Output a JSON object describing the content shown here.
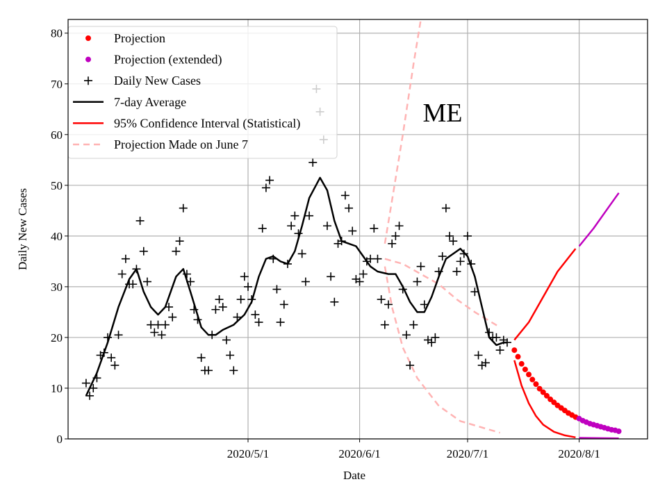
{
  "chart_data": {
    "type": "line",
    "annotation": "ME",
    "xlabel": "Date",
    "ylabel": "Daily New Cases",
    "xlim": [
      "2020-03-12",
      "2020-08-20"
    ],
    "ylim": [
      0,
      82.7
    ],
    "grid": true,
    "legend_placement": "top-left",
    "x_ticks": [
      {
        "date": "2020-05-01",
        "label": "2020/5/1"
      },
      {
        "date": "2020-06-01",
        "label": "2020/6/1"
      },
      {
        "date": "2020-07-01",
        "label": "2020/7/1"
      },
      {
        "date": "2020-08-01",
        "label": "2020/8/1"
      }
    ],
    "y_ticks": [
      0,
      10,
      20,
      30,
      40,
      50,
      60,
      70,
      80
    ],
    "colors": {
      "projection": "#ff0000",
      "projection_extended": "#bf00bf",
      "daily": "#000000",
      "average": "#000000",
      "ci": "#ff0000",
      "ci_extended": "#bf00bf",
      "june7": "#ffb3b3",
      "grid": "#b0b0b0"
    },
    "legend": [
      {
        "label": "Projection",
        "marker": "dot",
        "color": "#ff0000"
      },
      {
        "label": "Projection (extended)",
        "marker": "dot",
        "color": "#bf00bf"
      },
      {
        "label": "Daily New Cases",
        "marker": "plus",
        "color": "#000000"
      },
      {
        "label": "7-day Average",
        "marker": "line",
        "color": "#000000"
      },
      {
        "label": "95% Confidence Interval (Statistical)",
        "marker": "line",
        "color": "#ff0000"
      },
      {
        "label": "Projection Made on June 7",
        "marker": "dashed",
        "color": "#ffb3b3"
      }
    ],
    "series": {
      "daily_new_cases": [
        [
          "2020-03-17",
          11
        ],
        [
          "2020-03-18",
          8.5
        ],
        [
          "2020-03-19",
          10
        ],
        [
          "2020-03-20",
          12
        ],
        [
          "2020-03-21",
          16.5
        ],
        [
          "2020-03-22",
          17
        ],
        [
          "2020-03-23",
          20
        ],
        [
          "2020-03-24",
          16
        ],
        [
          "2020-03-25",
          14.5
        ],
        [
          "2020-03-26",
          20.5
        ],
        [
          "2020-03-27",
          32.5
        ],
        [
          "2020-03-28",
          35.5
        ],
        [
          "2020-03-29",
          30.5
        ],
        [
          "2020-03-30",
          30.5
        ],
        [
          "2020-03-31",
          33.5
        ],
        [
          "2020-04-01",
          43
        ],
        [
          "2020-04-02",
          37
        ],
        [
          "2020-04-03",
          31
        ],
        [
          "2020-04-04",
          22.5
        ],
        [
          "2020-04-05",
          21
        ],
        [
          "2020-04-06",
          22.5
        ],
        [
          "2020-04-07",
          20.5
        ],
        [
          "2020-04-08",
          22.5
        ],
        [
          "2020-04-09",
          26
        ],
        [
          "2020-04-10",
          24
        ],
        [
          "2020-04-11",
          37
        ],
        [
          "2020-04-12",
          39
        ],
        [
          "2020-04-13",
          45.5
        ],
        [
          "2020-04-14",
          32.5
        ],
        [
          "2020-04-15",
          31
        ],
        [
          "2020-04-16",
          25.5
        ],
        [
          "2020-04-17",
          23.5
        ],
        [
          "2020-04-18",
          16
        ],
        [
          "2020-04-19",
          13.5
        ],
        [
          "2020-04-20",
          13.5
        ],
        [
          "2020-04-21",
          20.5
        ],
        [
          "2020-04-22",
          25.5
        ],
        [
          "2020-04-23",
          27.5
        ],
        [
          "2020-04-24",
          26
        ],
        [
          "2020-04-25",
          19.5
        ],
        [
          "2020-04-26",
          16.5
        ],
        [
          "2020-04-27",
          13.5
        ],
        [
          "2020-04-28",
          24
        ],
        [
          "2020-04-29",
          27.5
        ],
        [
          "2020-04-30",
          32
        ],
        [
          "2020-05-01",
          30
        ],
        [
          "2020-05-02",
          27.5
        ],
        [
          "2020-05-03",
          24.5
        ],
        [
          "2020-05-04",
          23
        ],
        [
          "2020-05-05",
          41.5
        ],
        [
          "2020-05-06",
          49.5
        ],
        [
          "2020-05-07",
          51
        ],
        [
          "2020-05-08",
          35.5
        ],
        [
          "2020-05-09",
          29.5
        ],
        [
          "2020-05-10",
          23
        ],
        [
          "2020-05-11",
          26.5
        ],
        [
          "2020-05-12",
          34.5
        ],
        [
          "2020-05-13",
          42
        ],
        [
          "2020-05-14",
          44
        ],
        [
          "2020-05-15",
          40.5
        ],
        [
          "2020-05-16",
          36.5
        ],
        [
          "2020-05-17",
          31
        ],
        [
          "2020-05-18",
          44
        ],
        [
          "2020-05-19",
          54.5
        ],
        [
          "2020-05-20",
          69
        ],
        [
          "2020-05-21",
          64.5
        ],
        [
          "2020-05-22",
          59
        ],
        [
          "2020-05-23",
          42
        ],
        [
          "2020-05-24",
          32
        ],
        [
          "2020-05-25",
          27
        ],
        [
          "2020-05-26",
          38.5
        ],
        [
          "2020-05-27",
          39
        ],
        [
          "2020-05-28",
          48
        ],
        [
          "2020-05-29",
          45.5
        ],
        [
          "2020-05-30",
          41
        ],
        [
          "2020-05-31",
          31.5
        ],
        [
          "2020-06-01",
          31
        ],
        [
          "2020-06-02",
          32.5
        ],
        [
          "2020-06-03",
          35
        ],
        [
          "2020-06-04",
          35.5
        ],
        [
          "2020-06-05",
          41.5
        ],
        [
          "2020-06-06",
          35.5
        ],
        [
          "2020-06-07",
          27.5
        ],
        [
          "2020-06-08",
          22.5
        ],
        [
          "2020-06-09",
          26.5
        ],
        [
          "2020-06-10",
          38.5
        ],
        [
          "2020-06-11",
          40
        ],
        [
          "2020-06-12",
          42
        ],
        [
          "2020-06-13",
          29.5
        ],
        [
          "2020-06-14",
          20.5
        ],
        [
          "2020-06-15",
          14.5
        ],
        [
          "2020-06-16",
          22.5
        ],
        [
          "2020-06-17",
          31
        ],
        [
          "2020-06-18",
          34
        ],
        [
          "2020-06-19",
          26.5
        ],
        [
          "2020-06-20",
          19.5
        ],
        [
          "2020-06-21",
          19
        ],
        [
          "2020-06-22",
          20
        ],
        [
          "2020-06-23",
          33
        ],
        [
          "2020-06-24",
          36
        ],
        [
          "2020-06-25",
          45.5
        ],
        [
          "2020-06-26",
          40
        ],
        [
          "2020-06-27",
          39
        ],
        [
          "2020-06-28",
          33
        ],
        [
          "2020-06-29",
          35
        ],
        [
          "2020-06-30",
          36.5
        ],
        [
          "2020-07-01",
          40
        ],
        [
          "2020-07-02",
          34.5
        ],
        [
          "2020-07-03",
          29
        ],
        [
          "2020-07-04",
          16.5
        ],
        [
          "2020-07-05",
          14.5
        ],
        [
          "2020-07-06",
          15
        ],
        [
          "2020-07-07",
          21
        ],
        [
          "2020-07-08",
          20
        ],
        [
          "2020-07-09",
          20
        ],
        [
          "2020-07-10",
          17.5
        ],
        [
          "2020-07-11",
          19.5
        ],
        [
          "2020-07-12",
          19
        ]
      ],
      "seven_day_average": [
        [
          "2020-03-17",
          8.5
        ],
        [
          "2020-03-20",
          13
        ],
        [
          "2020-03-23",
          19
        ],
        [
          "2020-03-26",
          26
        ],
        [
          "2020-03-29",
          31.5
        ],
        [
          "2020-03-31",
          33.5
        ],
        [
          "2020-04-02",
          29
        ],
        [
          "2020-04-04",
          26
        ],
        [
          "2020-04-06",
          24.5
        ],
        [
          "2020-04-08",
          26
        ],
        [
          "2020-04-11",
          32
        ],
        [
          "2020-04-13",
          33.5
        ],
        [
          "2020-04-15",
          29
        ],
        [
          "2020-04-18",
          22
        ],
        [
          "2020-04-20",
          20.5
        ],
        [
          "2020-04-22",
          20.5
        ],
        [
          "2020-04-24",
          21.5
        ],
        [
          "2020-04-27",
          22.5
        ],
        [
          "2020-04-30",
          24.5
        ],
        [
          "2020-05-02",
          27
        ],
        [
          "2020-05-04",
          32
        ],
        [
          "2020-05-06",
          35.5
        ],
        [
          "2020-05-08",
          36
        ],
        [
          "2020-05-10",
          35
        ],
        [
          "2020-05-12",
          34.5
        ],
        [
          "2020-05-14",
          37
        ],
        [
          "2020-05-16",
          42
        ],
        [
          "2020-05-18",
          47.5
        ],
        [
          "2020-05-21",
          51.5
        ],
        [
          "2020-05-23",
          49
        ],
        [
          "2020-05-25",
          43
        ],
        [
          "2020-05-27",
          39
        ],
        [
          "2020-05-29",
          38.5
        ],
        [
          "2020-05-31",
          38
        ],
        [
          "2020-06-02",
          36
        ],
        [
          "2020-06-04",
          34
        ],
        [
          "2020-06-06",
          33
        ],
        [
          "2020-06-09",
          32.5
        ],
        [
          "2020-06-11",
          32.5
        ],
        [
          "2020-06-13",
          30
        ],
        [
          "2020-06-15",
          27
        ],
        [
          "2020-06-17",
          25
        ],
        [
          "2020-06-19",
          25
        ],
        [
          "2020-06-21",
          28
        ],
        [
          "2020-06-23",
          32
        ],
        [
          "2020-06-25",
          35.5
        ],
        [
          "2020-06-29",
          37.5
        ],
        [
          "2020-07-01",
          36
        ],
        [
          "2020-07-03",
          32
        ],
        [
          "2020-07-05",
          26
        ],
        [
          "2020-07-07",
          20
        ],
        [
          "2020-07-09",
          18.5
        ],
        [
          "2020-07-11",
          19
        ],
        [
          "2020-07-12",
          19
        ]
      ],
      "projection": [
        [
          "2020-07-14",
          17.5
        ],
        [
          "2020-07-15",
          16.2
        ],
        [
          "2020-07-16",
          14.8
        ],
        [
          "2020-07-17",
          13.7
        ],
        [
          "2020-07-18",
          12.7
        ],
        [
          "2020-07-19",
          11.7
        ],
        [
          "2020-07-20",
          10.8
        ],
        [
          "2020-07-21",
          9.9
        ],
        [
          "2020-07-22",
          9.2
        ],
        [
          "2020-07-23",
          8.5
        ],
        [
          "2020-07-24",
          7.8
        ],
        [
          "2020-07-25",
          7.2
        ],
        [
          "2020-07-26",
          6.6
        ],
        [
          "2020-07-27",
          6.1
        ],
        [
          "2020-07-28",
          5.6
        ],
        [
          "2020-07-29",
          5.1
        ],
        [
          "2020-07-30",
          4.7
        ],
        [
          "2020-07-31",
          4.3
        ]
      ],
      "projection_extended": [
        [
          "2020-08-01",
          4.0
        ],
        [
          "2020-08-02",
          3.6
        ],
        [
          "2020-08-03",
          3.3
        ],
        [
          "2020-08-04",
          3.0
        ],
        [
          "2020-08-05",
          2.8
        ],
        [
          "2020-08-06",
          2.6
        ],
        [
          "2020-08-07",
          2.4
        ],
        [
          "2020-08-08",
          2.2
        ],
        [
          "2020-08-09",
          2.0
        ],
        [
          "2020-08-10",
          1.8
        ],
        [
          "2020-08-11",
          1.7
        ],
        [
          "2020-08-12",
          1.5
        ]
      ],
      "ci_upper": [
        [
          "2020-07-14",
          19.5
        ],
        [
          "2020-07-18",
          23
        ],
        [
          "2020-07-22",
          28
        ],
        [
          "2020-07-26",
          33
        ],
        [
          "2020-07-31",
          37.5
        ]
      ],
      "ci_upper_extended": [
        [
          "2020-08-01",
          38
        ],
        [
          "2020-08-05",
          41.5
        ],
        [
          "2020-08-09",
          45.5
        ],
        [
          "2020-08-12",
          48.5
        ]
      ],
      "ci_lower": [
        [
          "2020-07-14",
          15.5
        ],
        [
          "2020-07-16",
          10.5
        ],
        [
          "2020-07-18",
          7
        ],
        [
          "2020-07-20",
          4.5
        ],
        [
          "2020-07-22",
          2.8
        ],
        [
          "2020-07-25",
          1.4
        ],
        [
          "2020-07-28",
          0.7
        ],
        [
          "2020-07-31",
          0.3
        ]
      ],
      "ci_lower_extended": [
        [
          "2020-08-01",
          0.2
        ],
        [
          "2020-08-12",
          0.1
        ]
      ],
      "june7_center": [
        [
          "2020-06-08",
          35.5
        ],
        [
          "2020-06-13",
          34.5
        ],
        [
          "2020-06-18",
          32.5
        ],
        [
          "2020-06-23",
          30.5
        ],
        [
          "2020-06-28",
          27.5
        ],
        [
          "2020-07-03",
          25
        ],
        [
          "2020-07-10",
          22
        ]
      ],
      "june7_upper": [
        [
          "2020-06-08",
          38.5
        ],
        [
          "2020-06-10",
          47
        ],
        [
          "2020-06-13",
          60
        ],
        [
          "2020-06-16",
          74
        ],
        [
          "2020-06-18",
          82.7
        ],
        [
          "2020-06-19",
          88
        ]
      ],
      "june7_lower": [
        [
          "2020-06-08",
          34
        ],
        [
          "2020-06-10",
          26
        ],
        [
          "2020-06-13",
          18
        ],
        [
          "2020-06-17",
          12
        ],
        [
          "2020-06-23",
          6.5
        ],
        [
          "2020-06-29",
          3.5
        ],
        [
          "2020-07-10",
          1.2
        ]
      ]
    }
  }
}
